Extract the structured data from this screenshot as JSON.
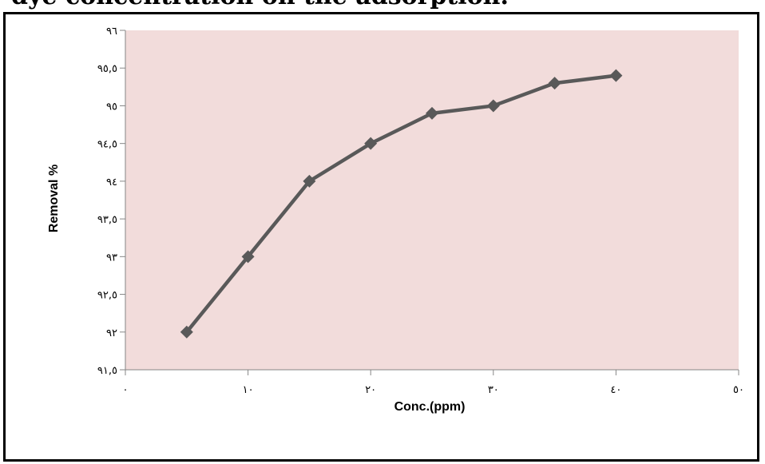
{
  "page": {
    "caption": "dye concentration on the adsorption."
  },
  "colors": {
    "plot_background": "#f2dcdb",
    "series_line": "#595959",
    "marker": "#595959"
  },
  "chart_data": {
    "type": "line",
    "title": "",
    "xlabel": "Conc.(ppm)",
    "ylabel": "Removal %",
    "xlim": [
      0,
      50
    ],
    "ylim": [
      91.5,
      96
    ],
    "x_ticks": [
      {
        "value": 0,
        "label": "٠"
      },
      {
        "value": 10,
        "label": "١٠"
      },
      {
        "value": 20,
        "label": "٢٠"
      },
      {
        "value": 30,
        "label": "٣٠"
      },
      {
        "value": 40,
        "label": "٤٠"
      },
      {
        "value": 50,
        "label": "٥٠"
      }
    ],
    "y_ticks": [
      {
        "value": 91.5,
        "label": "٩١,٥"
      },
      {
        "value": 92,
        "label": "٩٢"
      },
      {
        "value": 92.5,
        "label": "٩٢,٥"
      },
      {
        "value": 93,
        "label": "٩٣"
      },
      {
        "value": 93.5,
        "label": "٩٣,٥"
      },
      {
        "value": 94,
        "label": "٩٤"
      },
      {
        "value": 94.5,
        "label": "٩٤,٥"
      },
      {
        "value": 95,
        "label": "٩٥"
      },
      {
        "value": 95.5,
        "label": "٩٥,٥"
      },
      {
        "value": 96,
        "label": "٩٦"
      }
    ],
    "grid": false,
    "legend": "none",
    "marker": "diamond",
    "series": [
      {
        "x": [
          5,
          10,
          15,
          20,
          25,
          30,
          35,
          40
        ],
        "y": [
          92,
          93,
          94,
          94.5,
          94.9,
          95,
          95.3,
          95.4
        ]
      }
    ]
  }
}
